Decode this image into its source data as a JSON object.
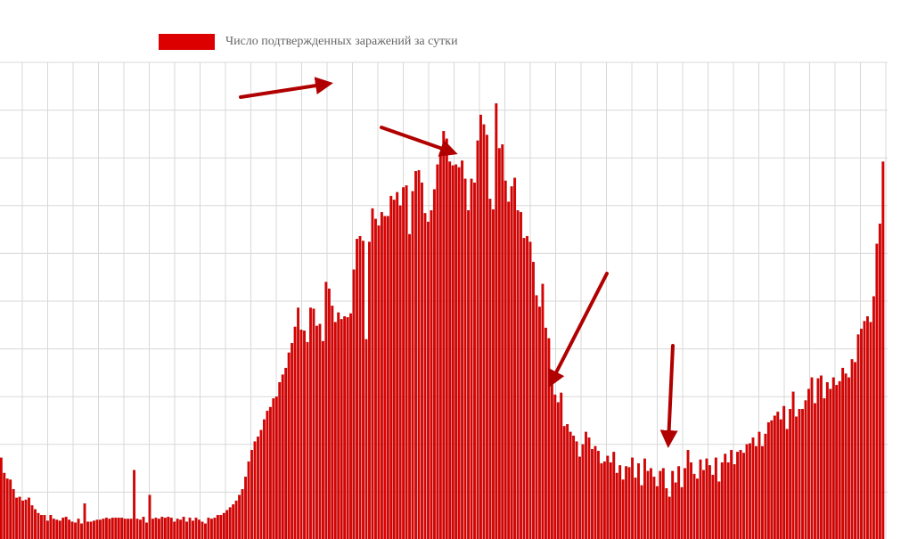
{
  "chart_data": {
    "type": "bar",
    "series": [
      {
        "name": "Число подтвержденных заражений за сутки",
        "values": [
          86,
          70,
          64,
          63,
          53,
          44,
          45,
          41,
          42,
          44,
          36,
          32,
          28,
          26,
          26,
          20,
          26,
          22,
          21,
          20,
          23,
          24,
          21,
          19,
          18,
          22,
          17,
          38,
          19,
          19,
          20,
          21,
          21,
          22,
          23,
          22,
          23,
          23,
          23,
          23,
          22,
          22,
          22,
          73,
          22,
          21,
          24,
          18,
          47,
          22,
          23,
          22,
          24,
          23,
          24,
          23,
          19,
          22,
          21,
          24,
          19,
          23,
          20,
          23,
          21,
          19,
          17,
          23,
          22,
          23,
          26,
          26,
          28,
          31,
          34,
          37,
          41,
          47,
          53,
          66,
          82,
          94,
          103,
          108,
          115,
          126,
          135,
          139,
          148,
          150,
          165,
          173,
          180,
          196,
          206,
          223,
          243,
          220,
          219,
          207,
          243,
          242,
          224,
          226,
          208,
          270,
          263,
          245,
          228,
          238,
          231,
          234,
          233,
          237,
          283,
          315,
          318,
          313,
          210,
          312,
          347,
          336,
          329,
          343,
          339,
          339,
          360,
          356,
          364,
          350,
          369,
          371,
          320,
          365,
          386,
          387,
          374,
          342,
          333,
          345,
          367,
          393,
          402,
          428,
          420,
          396,
          392,
          393,
          390,
          397,
          378,
          345,
          378,
          374,
          418,
          445,
          435,
          424,
          357,
          346,
          457,
          410,
          414,
          376,
          354,
          370,
          379,
          345,
          343,
          316,
          318,
          312,
          291,
          256,
          244,
          268,
          222,
          211,
          171,
          152,
          144,
          154,
          119,
          121,
          113,
          109,
          103,
          87,
          100,
          113,
          107,
          95,
          98,
          93,
          80,
          82,
          88,
          81,
          92,
          70,
          78,
          63,
          77,
          76,
          86,
          65,
          80,
          57,
          85,
          72,
          75,
          66,
          56,
          72,
          75,
          54,
          45,
          72,
          60,
          77,
          55,
          75,
          94,
          81,
          69,
          64,
          84,
          73,
          85,
          78,
          68,
          86,
          61,
          81,
          90,
          81,
          94,
          79,
          92,
          94,
          91,
          100,
          101,
          107,
          98,
          113,
          98,
          111,
          123,
          125,
          130,
          134,
          126,
          140,
          116,
          137,
          155,
          129,
          137,
          137,
          146,
          158,
          170,
          143,
          169,
          172,
          148,
          165,
          158,
          170,
          162,
          166,
          180,
          174,
          170,
          189,
          186,
          215,
          221,
          229,
          234,
          228,
          255,
          310,
          331,
          396
        ]
      }
    ],
    "legend": [
      "Число подтвержденных заражений за сутки"
    ],
    "ylim": [
      0,
      500
    ],
    "grid": true,
    "legend_position": "top-left",
    "title": "",
    "xlabel": "",
    "ylabel": "",
    "annotations": [
      "arrow",
      "arrow",
      "arrow",
      "arrow"
    ]
  },
  "colors": {
    "bar": "#dd0000",
    "bar_dark": "#9a0000",
    "arrow": "#b00000",
    "grid": "#d8d8d8",
    "legend_text": "#666666"
  }
}
